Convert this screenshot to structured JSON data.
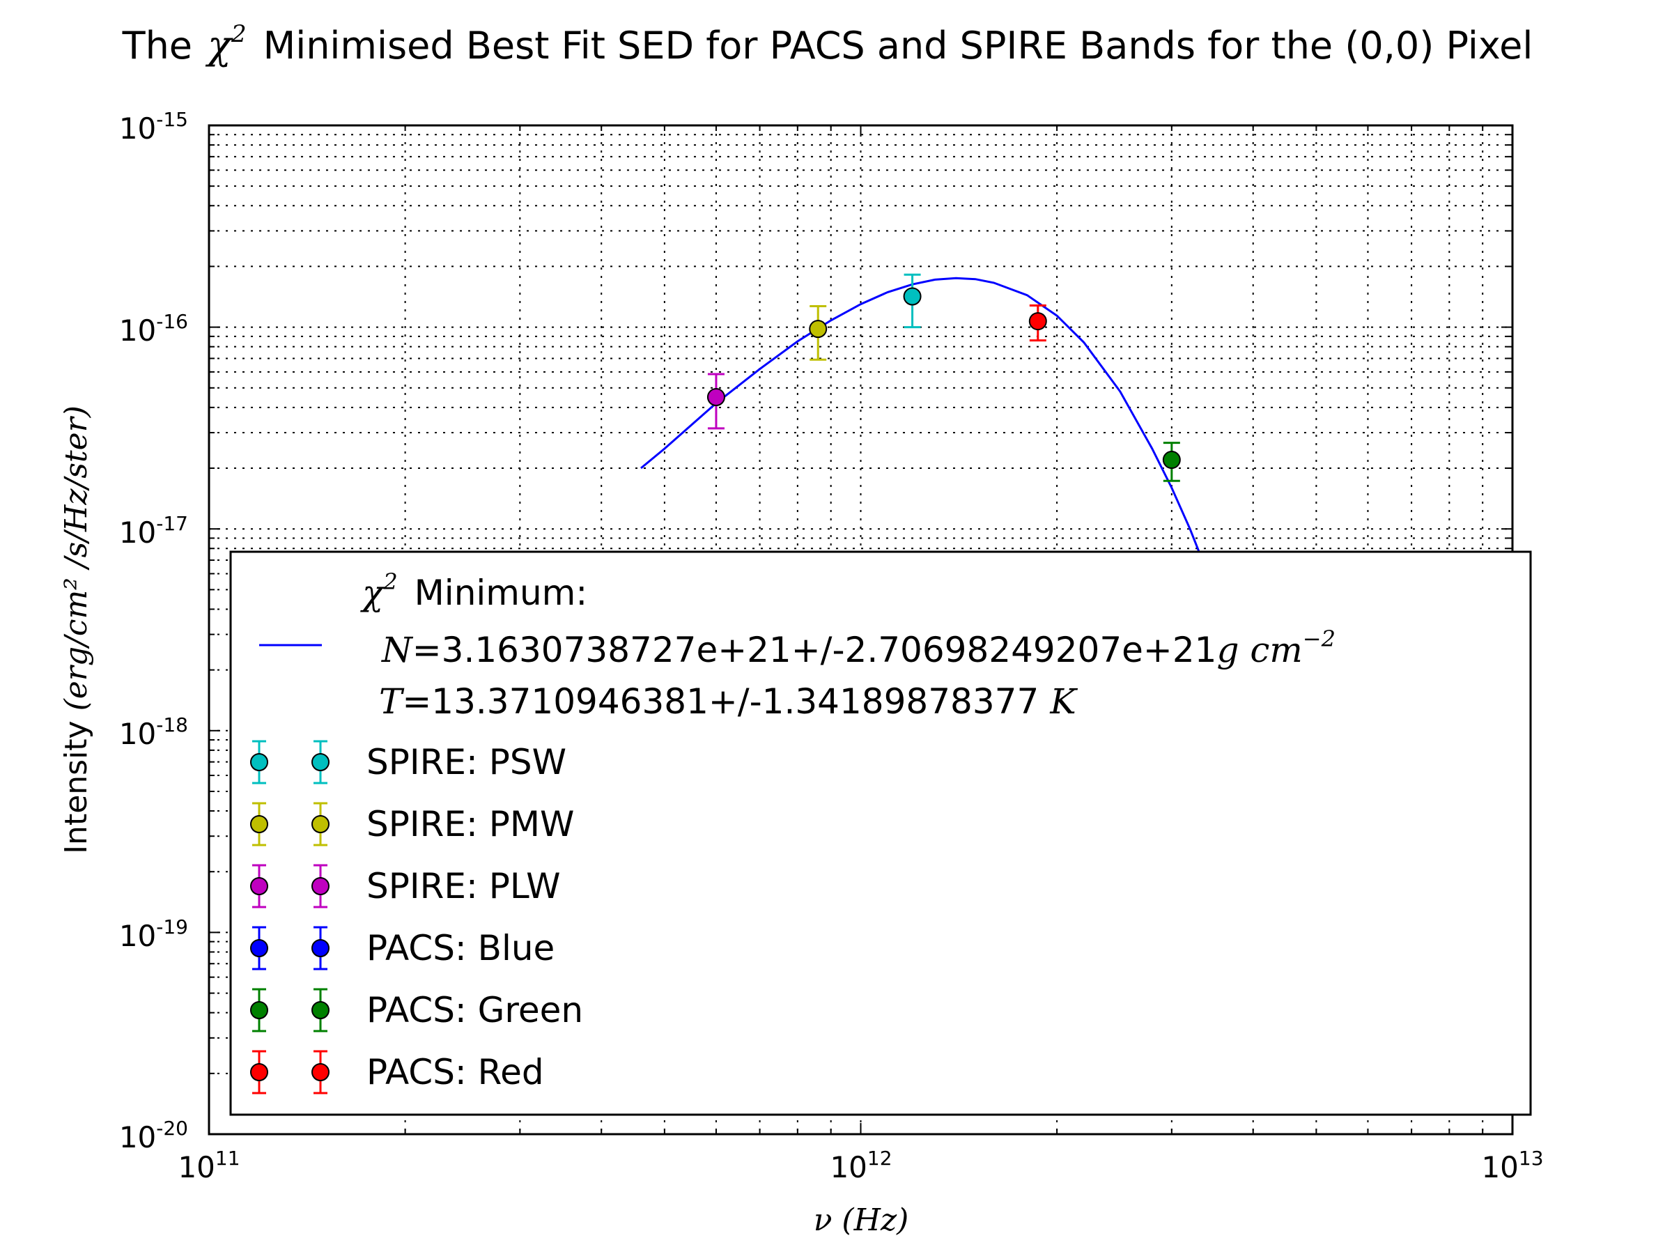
{
  "chart_data": {
    "type": "scatter",
    "title_prefix": "The",
    "title_symbol": "χ",
    "title_exp": "2",
    "title_suffix": "Minimised Best Fit SED for PACS and SPIRE Bands for the (0,0) Pixel",
    "xlabel": "ν (Hz)",
    "ylabel_text": "Intensity",
    "ylabel_math": "(erg/cm² /s/Hz/ster)",
    "x_scale": "log",
    "y_scale": "log",
    "xlim": [
      100000000000.0,
      10000000000000.0
    ],
    "ylim": [
      1e-20,
      1e-15
    ],
    "x_tick_labels": [
      {
        "base": "10",
        "exp": "11",
        "value": 100000000000.0
      },
      {
        "base": "10",
        "exp": "12",
        "value": 1000000000000.0
      },
      {
        "base": "10",
        "exp": "13",
        "value": 10000000000000.0
      }
    ],
    "y_tick_labels": [
      {
        "base": "10",
        "exp": "-15",
        "value": 1e-15
      },
      {
        "base": "10",
        "exp": "-16",
        "value": 1e-16
      },
      {
        "base": "10",
        "exp": "-17",
        "value": 1e-17
      },
      {
        "base": "10",
        "exp": "-18",
        "value": 1e-18
      },
      {
        "base": "10",
        "exp": "-19",
        "value": 1e-19
      },
      {
        "base": "10",
        "exp": "-20",
        "value": 1e-20
      }
    ],
    "grid": true,
    "legend_position": "lower-right",
    "fit": {
      "label_title": "Minimum:",
      "label_symbol": "χ",
      "label_exp": "2",
      "label_N_sym": "N",
      "label_N": "=3.1630738727e+21+/-2.70698249207e+21",
      "label_N_unit": "g cm",
      "label_N_unit_exp": "−2",
      "label_T_sym": "T",
      "label_T": "=13.3710946381+/-1.34189878377",
      "label_T_unit": "K",
      "color": "#0000ff",
      "x": [
        460000000000.0,
        500000000000.0,
        600000000000.0,
        700000000000.0,
        800000000000.0,
        900000000000.0,
        1000000000000.0,
        1100000000000.0,
        1200000000000.0,
        1300000000000.0,
        1400000000000.0,
        1500000000000.0,
        1600000000000.0,
        1800000000000.0,
        2000000000000.0,
        2200000000000.0,
        2500000000000.0,
        2800000000000.0,
        3000000000000.0,
        3200000000000.0,
        3400000000000.0,
        3600000000000.0,
        3800000000000.0
      ],
      "y": [
        2e-17,
        2.5e-17,
        4.2e-17,
        6.2e-17,
        8.5e-17,
        1.08e-16,
        1.3e-16,
        1.49e-16,
        1.63e-16,
        1.72e-16,
        1.75e-16,
        1.73e-16,
        1.66e-16,
        1.44e-16,
        1.14e-16,
        8.4e-17,
        4.8e-17,
        2.5e-17,
        1.6e-17,
        1e-17,
        6.1e-18,
        3.6e-18,
        2.1e-18
      ]
    },
    "series": [
      {
        "name": "SPIRE: PSW",
        "color": "#00bfbf",
        "x": [
          1200000000000.0
        ],
        "y": [
          1.42e-16
        ],
        "yerr_low": [
          1e-16
        ],
        "yerr_high": [
          1.82e-16
        ]
      },
      {
        "name": "SPIRE: PMW",
        "color": "#bfbf00",
        "x": [
          860000000000.0
        ],
        "y": [
          9.8e-17
        ],
        "yerr_low": [
          6.9e-17
        ],
        "yerr_high": [
          1.27e-16
        ]
      },
      {
        "name": "SPIRE: PLW",
        "color": "#bf00bf",
        "x": [
          600000000000.0
        ],
        "y": [
          4.5e-17
        ],
        "yerr_low": [
          3.15e-17
        ],
        "yerr_high": [
          5.85e-17
        ]
      },
      {
        "name": "PACS: Blue",
        "color": "#0000ff",
        "x": [],
        "y": [],
        "yerr_low": [],
        "yerr_high": []
      },
      {
        "name": "PACS: Green",
        "color": "#008000",
        "x": [
          3000000000000.0
        ],
        "y": [
          2.2e-17
        ],
        "yerr_low": [
          1.73e-17
        ],
        "yerr_high": [
          2.67e-17
        ]
      },
      {
        "name": "PACS: Red",
        "color": "#ff0000",
        "x": [
          1870000000000.0
        ],
        "y": [
          1.07e-16
        ],
        "yerr_low": [
          8.6e-17
        ],
        "yerr_high": [
          1.28e-16
        ]
      }
    ]
  }
}
